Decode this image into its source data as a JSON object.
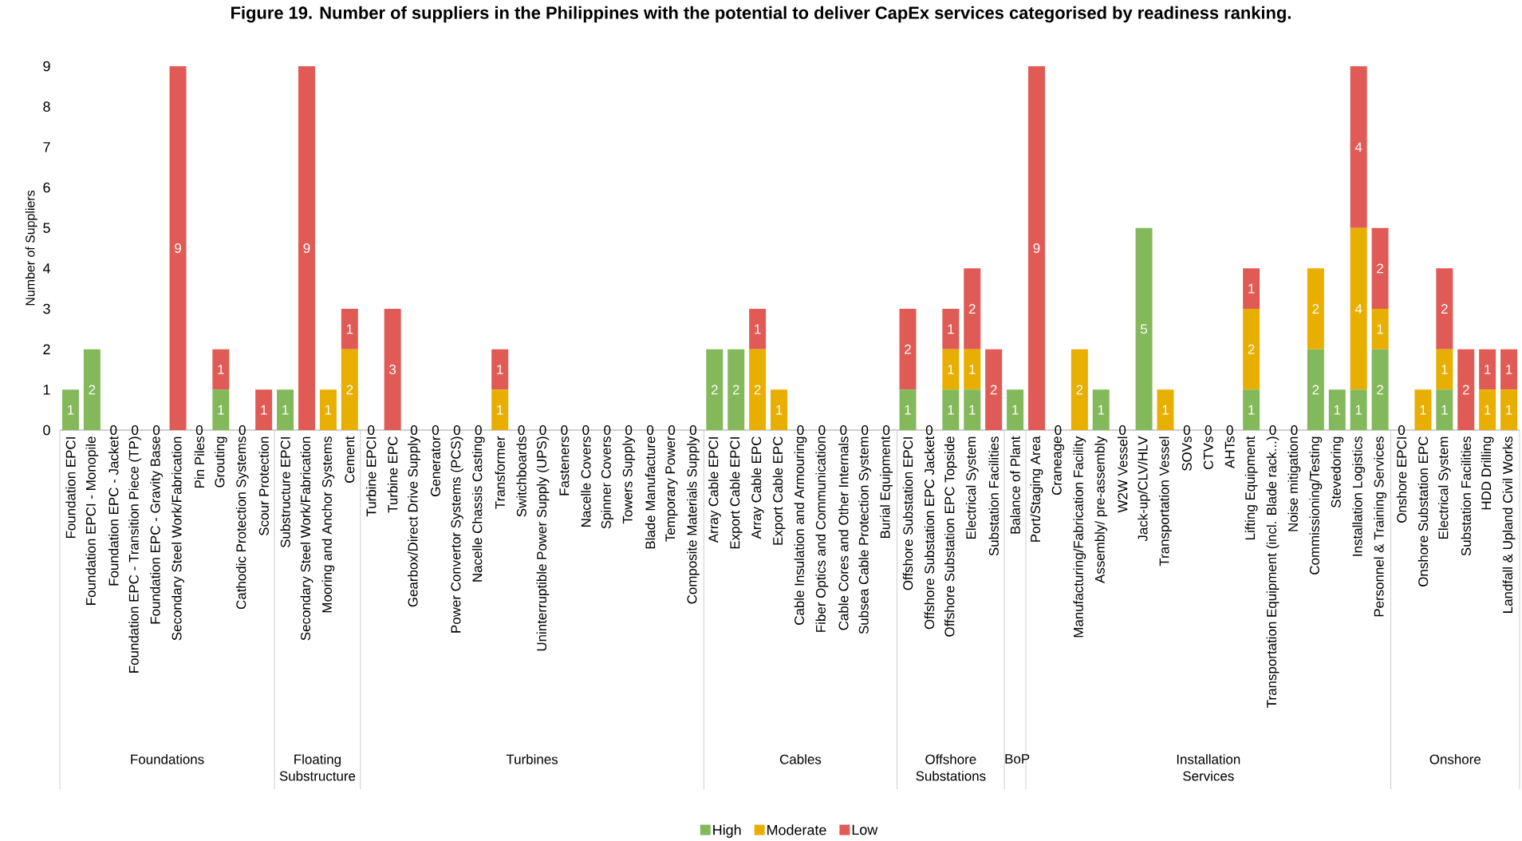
{
  "chart_data": {
    "type": "bar",
    "stacked": true,
    "title": "Figure 19. Number of suppliers in the Philippines with the potential to deliver CapEx services categorised by readiness ranking.",
    "ylabel": "Number of Suppliers",
    "ylim": [
      0,
      9
    ],
    "yticks": [
      0,
      1,
      2,
      3,
      4,
      5,
      6,
      7,
      8,
      9
    ],
    "legend": "bottom",
    "categories": [
      "Foundation EPCI",
      "Foundation EPCI - Monopile",
      "Foundation EPC - Jacket",
      "Foundation EPC - Transition Piece (TP)",
      "Foundation EPC - Gravity Base",
      "Secondary Steel Work/Fabrication",
      "Pin Piles",
      "Grouting",
      "Cathodic Protection Systems",
      "Scour Protection",
      "Substructure EPCI",
      "Secondary Steel Work/Fabrication",
      "Mooring and Anchor Systems",
      "Cement",
      "Turbine EPCI",
      "Turbine EPC",
      "Gearbox/Direct Drive Supply",
      "Generator",
      "Power Convertor Systems (PCS)",
      "Nacelle Chassis Casting",
      "Transformer",
      "Switchboards",
      "Uninterruptible Power Supply (UPS)",
      "Fasteners",
      "Nacelle Covers",
      "Spinner Covers",
      "Towers Supply",
      "Blade Manufacture",
      "Temporary Power",
      "Composite Materials Supply",
      "Array Cable EPCI",
      "Export Cable EPCI",
      "Array Cable EPC",
      "Export Cable EPC",
      "Cable Insulation and Armouring",
      "Fiber Optics and Communication",
      "Cable Cores and Other Internals",
      "Subsea Cable Protection System",
      "Burial Equipment",
      "Offshore Substation EPCI",
      "Offshore Substation EPC Jacket",
      "Offshore Substation EPC Topside",
      "Electrical System",
      "Substation Facilities",
      "Balance of  Plant",
      "Port/Staging Area",
      "Craneage",
      "Manufacturing/Fabrication Facility",
      "Assembly/ pre-assembly",
      "W2W Vessel",
      "Jack-up/CLV/HLV",
      "Transportation Vessel",
      "SOVs",
      "CTVs",
      "AHTs",
      "Lifting Equipment",
      "Transportation Equipment (incl. Blade rack...)",
      "Noise mitigation",
      "Commissioning/Testing",
      "Stevedoring",
      "Installation Logistics",
      "Personnel & Training Services",
      "Onshore EPCI",
      "Onshore Substation EPC",
      "Electrical System",
      "Substation Facilities",
      "HDD Drilling",
      "Landfall & Upland Civil Works"
    ],
    "series": [
      {
        "name": "High",
        "color": "#83b95a",
        "values": [
          1,
          2,
          0,
          0,
          0,
          0,
          0,
          1,
          0,
          0,
          1,
          0,
          0,
          0,
          0,
          0,
          0,
          0,
          0,
          0,
          0,
          0,
          0,
          0,
          0,
          0,
          0,
          0,
          0,
          0,
          2,
          2,
          0,
          0,
          0,
          0,
          0,
          0,
          0,
          1,
          0,
          1,
          1,
          0,
          1,
          0,
          0,
          0,
          1,
          0,
          5,
          0,
          0,
          0,
          0,
          1,
          0,
          0,
          2,
          1,
          1,
          2,
          0,
          0,
          1,
          0,
          0,
          0
        ],
        "value_labels": [
          "1",
          "2",
          "0",
          "0",
          "0",
          null,
          "0",
          "1",
          "0",
          null,
          "1",
          null,
          null,
          null,
          "0",
          null,
          "0",
          "0",
          "0",
          "0",
          null,
          "0",
          "0",
          "0",
          "0",
          "0",
          "0",
          "0",
          "0",
          "0",
          "2",
          "2",
          null,
          null,
          "0",
          "0",
          "0",
          "0",
          "0",
          "1",
          "0",
          "1",
          "1",
          null,
          "1",
          null,
          "0",
          null,
          "1",
          "0",
          "5",
          null,
          "0",
          "0",
          "0",
          "1",
          "0",
          "0",
          "2",
          "1",
          "1",
          "2",
          "0",
          null,
          "1",
          null,
          null,
          null
        ]
      },
      {
        "name": "Moderate",
        "color": "#e8ae00",
        "values": [
          0,
          0,
          0,
          0,
          0,
          0,
          0,
          0,
          0,
          0,
          0,
          0,
          1,
          2,
          0,
          0,
          0,
          0,
          0,
          0,
          1,
          0,
          0,
          0,
          0,
          0,
          0,
          0,
          0,
          0,
          0,
          0,
          2,
          1,
          0,
          0,
          0,
          0,
          0,
          0,
          0,
          1,
          1,
          0,
          0,
          0,
          0,
          2,
          0,
          0,
          0,
          1,
          0,
          0,
          0,
          2,
          0,
          0,
          2,
          0,
          4,
          1,
          0,
          1,
          1,
          0,
          1,
          1
        ],
        "value_labels": [
          null,
          null,
          null,
          null,
          null,
          null,
          null,
          null,
          null,
          null,
          null,
          null,
          "1",
          "2",
          null,
          null,
          null,
          null,
          null,
          null,
          "1",
          null,
          null,
          null,
          null,
          null,
          null,
          null,
          null,
          null,
          null,
          null,
          "2",
          "1",
          null,
          null,
          null,
          null,
          null,
          null,
          null,
          "1",
          "1",
          null,
          null,
          null,
          null,
          "2",
          null,
          null,
          null,
          "1",
          null,
          null,
          null,
          "2",
          null,
          null,
          "2",
          null,
          "4",
          "1",
          null,
          "1",
          "1",
          null,
          "1",
          "1"
        ]
      },
      {
        "name": "Low",
        "color": "#e05b55",
        "values": [
          0,
          0,
          0,
          0,
          0,
          9,
          0,
          1,
          0,
          1,
          0,
          9,
          0,
          1,
          0,
          3,
          0,
          0,
          0,
          0,
          1,
          0,
          0,
          0,
          0,
          0,
          0,
          0,
          0,
          0,
          0,
          0,
          1,
          0,
          0,
          0,
          0,
          0,
          0,
          2,
          0,
          1,
          2,
          2,
          0,
          9,
          0,
          0,
          0,
          0,
          0,
          0,
          0,
          0,
          0,
          1,
          0,
          0,
          0,
          0,
          4,
          2,
          0,
          0,
          2,
          2,
          1,
          1
        ],
        "value_labels": [
          null,
          null,
          null,
          null,
          null,
          "9",
          null,
          "1",
          null,
          "1",
          null,
          "9",
          null,
          "1",
          null,
          "3",
          null,
          null,
          null,
          null,
          "1",
          null,
          null,
          null,
          null,
          null,
          null,
          null,
          null,
          null,
          null,
          null,
          "1",
          null,
          null,
          null,
          null,
          null,
          null,
          "2",
          null,
          "1",
          "2",
          "2",
          null,
          "9",
          null,
          null,
          null,
          null,
          null,
          null,
          null,
          null,
          null,
          "1",
          null,
          null,
          null,
          null,
          "4",
          "2",
          null,
          null,
          "2",
          "2",
          "1",
          "1"
        ]
      }
    ],
    "annotations": [
      "Foundations",
      "Floating Substructure",
      "Turbines",
      "Cables",
      "Offshore Substations",
      "BoP",
      "Installation Services",
      "Onshore"
    ]
  }
}
